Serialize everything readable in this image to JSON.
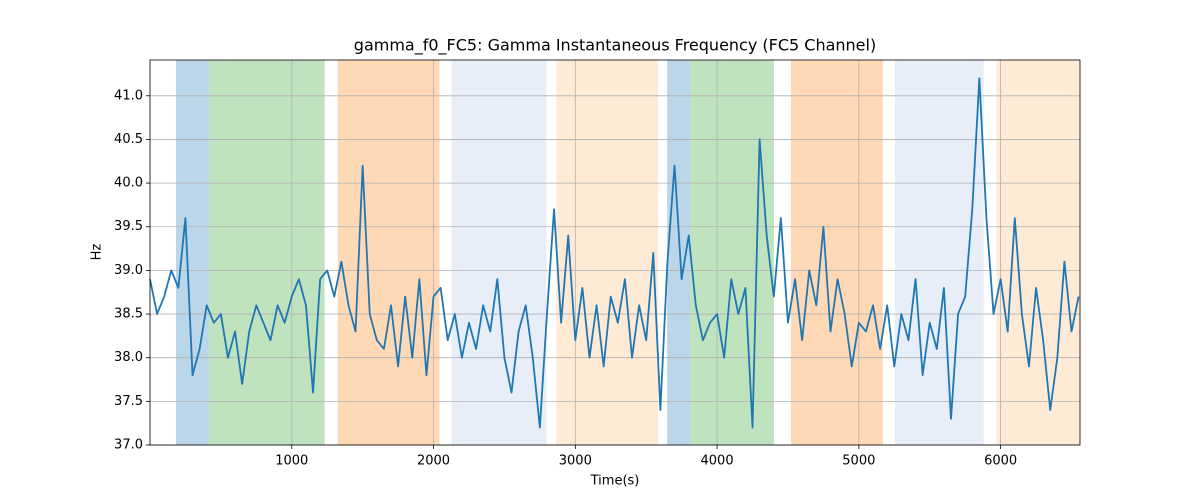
{
  "chart_data": {
    "type": "line",
    "title": "gamma_f0_FC5: Gamma Instantaneous Frequency (FC5 Channel)",
    "xlabel": "Time(s)",
    "ylabel": "Hz",
    "grid": true,
    "xlim": [
      0,
      6560
    ],
    "ylim": [
      37.0,
      41.41
    ],
    "xticks": [
      1000,
      2000,
      3000,
      4000,
      5000,
      6000
    ],
    "yticks": [
      {
        "value": 37.0,
        "label": "37.0"
      },
      {
        "value": 37.5,
        "label": "37.5"
      },
      {
        "value": 38.0,
        "label": "38.0"
      },
      {
        "value": 38.5,
        "label": "38.5"
      },
      {
        "value": 39.0,
        "label": "39.0"
      },
      {
        "value": 39.5,
        "label": "39.5"
      },
      {
        "value": 40.0,
        "label": "40.0"
      },
      {
        "value": 40.5,
        "label": "40.5"
      },
      {
        "value": 41.0,
        "label": "41.0"
      }
    ],
    "spans": [
      {
        "start": 183,
        "end": 415,
        "color": "#1f77b4"
      },
      {
        "start": 415,
        "end": 1232,
        "color": "#2ca02c"
      },
      {
        "start": 1324,
        "end": 2042,
        "color": "#ff7f0e"
      },
      {
        "start": 2127,
        "end": 2796,
        "color": "#aec7e8"
      },
      {
        "start": 2866,
        "end": 3585,
        "color": "#ffbb78"
      },
      {
        "start": 3648,
        "end": 3810,
        "color": "#1f77b4"
      },
      {
        "start": 3810,
        "end": 4401,
        "color": "#2ca02c"
      },
      {
        "start": 4521,
        "end": 5169,
        "color": "#ff7f0e"
      },
      {
        "start": 5254,
        "end": 5880,
        "color": "#aec7e8"
      },
      {
        "start": 5972,
        "end": 6560,
        "color": "#ffbb78"
      }
    ],
    "x": [
      0,
      50,
      100,
      150,
      200,
      250,
      300,
      350,
      400,
      450,
      500,
      550,
      600,
      650,
      700,
      750,
      800,
      850,
      900,
      950,
      1000,
      1050,
      1100,
      1150,
      1200,
      1250,
      1300,
      1350,
      1400,
      1450,
      1500,
      1550,
      1600,
      1650,
      1700,
      1750,
      1800,
      1850,
      1900,
      1950,
      2000,
      2050,
      2100,
      2150,
      2200,
      2250,
      2300,
      2350,
      2400,
      2450,
      2500,
      2550,
      2600,
      2650,
      2700,
      2750,
      2800,
      2850,
      2900,
      2950,
      3000,
      3050,
      3100,
      3150,
      3200,
      3250,
      3300,
      3350,
      3400,
      3450,
      3500,
      3550,
      3600,
      3650,
      3700,
      3750,
      3800,
      3850,
      3900,
      3950,
      4000,
      4050,
      4100,
      4150,
      4200,
      4250,
      4300,
      4350,
      4400,
      4450,
      4500,
      4550,
      4600,
      4650,
      4700,
      4750,
      4800,
      4850,
      4900,
      4950,
      5000,
      5050,
      5100,
      5150,
      5200,
      5250,
      5300,
      5350,
      5400,
      5450,
      5500,
      5550,
      5600,
      5650,
      5700,
      5750,
      5800,
      5850,
      5900,
      5950,
      6000,
      6050,
      6100,
      6150,
      6200,
      6250,
      6300,
      6350,
      6400,
      6450,
      6500,
      6550
    ],
    "series": [
      {
        "color": "#1f77b4",
        "values": [
          38.9,
          38.5,
          38.7,
          39.0,
          38.8,
          39.6,
          37.8,
          38.1,
          38.6,
          38.4,
          38.5,
          38.0,
          38.3,
          37.7,
          38.3,
          38.6,
          38.4,
          38.2,
          38.6,
          38.4,
          38.7,
          38.9,
          38.6,
          37.6,
          38.9,
          39.0,
          38.7,
          39.1,
          38.6,
          38.3,
          40.2,
          38.5,
          38.2,
          38.1,
          38.6,
          37.9,
          38.7,
          38.0,
          38.9,
          37.8,
          38.7,
          38.8,
          38.2,
          38.5,
          38.0,
          38.4,
          38.1,
          38.6,
          38.3,
          38.9,
          38.0,
          37.6,
          38.3,
          38.6,
          38.0,
          37.2,
          38.5,
          39.7,
          38.4,
          39.4,
          38.2,
          38.8,
          38.0,
          38.6,
          37.9,
          38.7,
          38.4,
          38.9,
          38.0,
          38.6,
          38.2,
          39.2,
          37.4,
          39.1,
          40.2,
          38.9,
          39.4,
          38.6,
          38.2,
          38.4,
          38.5,
          38.0,
          38.9,
          38.5,
          38.8,
          37.2,
          40.5,
          39.4,
          38.7,
          39.6,
          38.4,
          38.9,
          38.2,
          39.0,
          38.6,
          39.5,
          38.3,
          38.9,
          38.5,
          37.9,
          38.4,
          38.3,
          38.6,
          38.1,
          38.6,
          37.9,
          38.5,
          38.2,
          38.9,
          37.8,
          38.4,
          38.1,
          38.8,
          37.3,
          38.5,
          38.7,
          39.7,
          41.2,
          39.6,
          38.5,
          38.9,
          38.3,
          39.6,
          38.5,
          37.9,
          38.8,
          38.2,
          37.4,
          38.0,
          39.1,
          38.3,
          38.7
        ]
      }
    ]
  }
}
